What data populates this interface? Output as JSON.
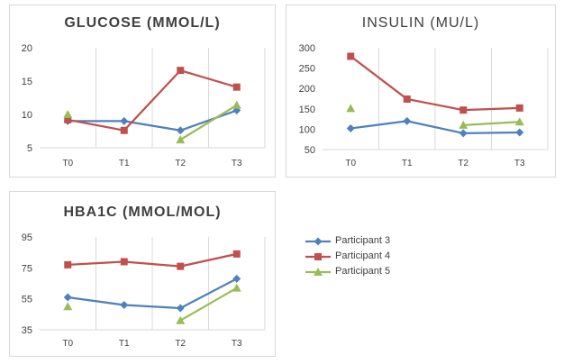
{
  "series_styles": [
    {
      "name": "Participant 3",
      "color": "#4f81bd",
      "marker": "diamond"
    },
    {
      "name": "Participant 4",
      "color": "#c0504d",
      "marker": "square"
    },
    {
      "name": "Participant 5",
      "color": "#9bbb59",
      "marker": "triangle"
    }
  ],
  "legend": [
    "Participant 3",
    "Participant 4",
    "Participant 5"
  ],
  "chart_data": [
    {
      "type": "line",
      "title": "GLUCOSE (MMOL/L)",
      "categories": [
        "T0",
        "T1",
        "T2",
        "T3"
      ],
      "ylim": [
        5,
        20
      ],
      "yticks": [
        "5",
        "10",
        "15",
        "20"
      ],
      "grid": "vertical",
      "series": [
        {
          "name": "Participant 3",
          "values": [
            9.0,
            9.0,
            7.6,
            10.6
          ]
        },
        {
          "name": "Participant 4",
          "values": [
            9.2,
            7.6,
            16.6,
            14.1
          ]
        },
        {
          "name": "Participant 5",
          "values": [
            10.0,
            null,
            6.2,
            11.4
          ]
        }
      ]
    },
    {
      "type": "line",
      "title": "INSULIN (MU/L)",
      "categories": [
        "T0",
        "T1",
        "T2",
        "T3"
      ],
      "ylim": [
        50,
        300
      ],
      "yticks": [
        "50",
        "100",
        "150",
        "200",
        "250",
        "300"
      ],
      "grid": "vertical",
      "series": [
        {
          "name": "Participant 3",
          "values": [
            102,
            120,
            90,
            92
          ]
        },
        {
          "name": "Participant 4",
          "values": [
            279,
            174,
            147,
            152
          ]
        },
        {
          "name": "Participant 5",
          "values": [
            151,
            null,
            110,
            118
          ]
        }
      ]
    },
    {
      "type": "line",
      "title": "HBA1C (MMOL/MOL)",
      "categories": [
        "T0",
        "T1",
        "T2",
        "T3"
      ],
      "ylim": [
        35,
        95
      ],
      "yticks": [
        "35",
        "55",
        "75",
        "95"
      ],
      "grid": "vertical",
      "series": [
        {
          "name": "Participant 3",
          "values": [
            56,
            51,
            49,
            68
          ]
        },
        {
          "name": "Participant 4",
          "values": [
            77,
            79,
            76,
            84
          ]
        },
        {
          "name": "Participant 5",
          "values": [
            50,
            null,
            41,
            62
          ]
        }
      ]
    }
  ]
}
